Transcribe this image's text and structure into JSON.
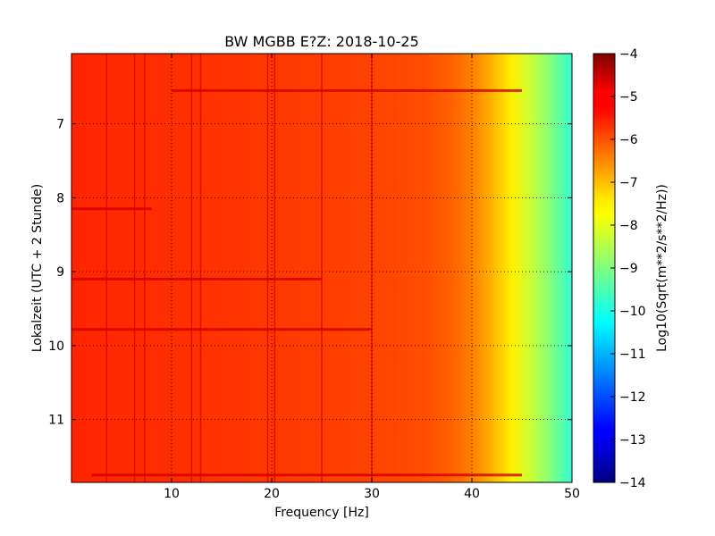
{
  "chart_data": {
    "type": "heatmap",
    "title": "BW MGBB E?Z: 2018-10-25",
    "xlabel": "Frequency [Hz]",
    "ylabel": "Lokalzeit (UTC + 2 Stunde)",
    "colorbar_label": "Log10(Sqrt(m**2/s**2/Hz))",
    "xlim": [
      0,
      50
    ],
    "ylim": [
      11.85,
      6.05
    ],
    "y_inverted": true,
    "x_ticks": [
      10,
      20,
      30,
      40,
      50
    ],
    "x_tick_labels": [
      "10",
      "20",
      "30",
      "40",
      "50"
    ],
    "y_ticks": [
      7,
      8,
      9,
      10,
      11
    ],
    "y_tick_labels": [
      "7",
      "8",
      "9",
      "10",
      "11"
    ],
    "color_range": [
      -14,
      -4
    ],
    "colorbar_ticks": [
      -4,
      -5,
      -6,
      -7,
      -8,
      -9,
      -10,
      -11,
      -12,
      -13,
      -14
    ],
    "colorbar_tick_labels": [
      "−4",
      "−5",
      "−6",
      "−7",
      "−8",
      "−9",
      "−10",
      "−11",
      "−12",
      "−13",
      "−14"
    ],
    "colormap": "jet",
    "grid": true,
    "spectrum_profile": {
      "frequency_hz": [
        0,
        5,
        10,
        15,
        20,
        25,
        30,
        35,
        38,
        40,
        42,
        44,
        46,
        48,
        50
      ],
      "log10_psd": [
        -5.6,
        -5.65,
        -5.7,
        -5.75,
        -5.8,
        -5.85,
        -5.9,
        -6.0,
        -6.2,
        -6.5,
        -7.0,
        -7.6,
        -8.3,
        -9.0,
        -9.8
      ]
    },
    "vertical_lines_hz": [
      3.5,
      6.3,
      7.3,
      12.0,
      12.9,
      19.6,
      20.3,
      25.0,
      30.0
    ],
    "horizontal_bands": [
      {
        "time": 6.55,
        "x_range": [
          10,
          45
        ]
      },
      {
        "time": 8.15,
        "x_range": [
          0,
          8
        ]
      },
      {
        "time": 9.1,
        "x_range": [
          0,
          25
        ]
      },
      {
        "time": 9.78,
        "x_range": [
          0,
          30
        ]
      },
      {
        "time": 11.75,
        "x_range": [
          2,
          45
        ]
      }
    ]
  }
}
